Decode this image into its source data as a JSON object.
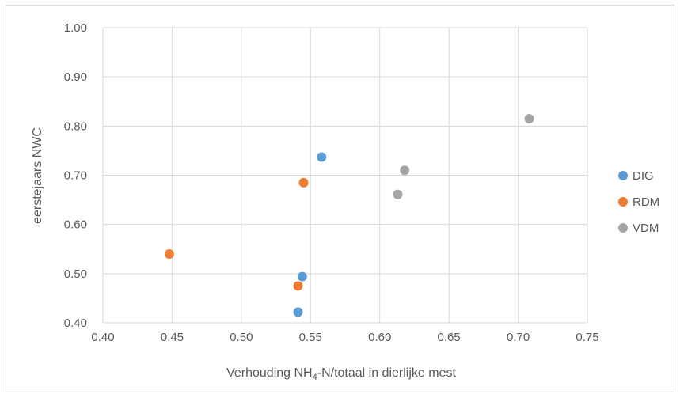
{
  "chart_data": {
    "type": "scatter",
    "title": "",
    "xlabel_parts": {
      "prefix": "Verhouding NH",
      "sub": "4",
      "suffix": "-N/totaal in dierlijke mest"
    },
    "ylabel": "eerstejaars NWC",
    "xlim": [
      0.4,
      0.75
    ],
    "ylim": [
      0.4,
      1.0
    ],
    "x_ticks": [
      0.4,
      0.45,
      0.5,
      0.55,
      0.6,
      0.65,
      0.7,
      0.75
    ],
    "y_ticks": [
      0.4,
      0.5,
      0.6,
      0.7,
      0.8,
      0.9,
      1.0
    ],
    "x_tick_labels": [
      "0.40",
      "0.45",
      "0.50",
      "0.55",
      "0.60",
      "0.65",
      "0.70",
      "0.75"
    ],
    "y_tick_labels": [
      "0.40",
      "0.50",
      "0.60",
      "0.70",
      "0.80",
      "0.90",
      "1.00"
    ],
    "grid": true,
    "legend_position": "right",
    "series": [
      {
        "name": "DIG",
        "color": "#5b9bd5",
        "points": [
          [
            0.558,
            0.737
          ],
          [
            0.544,
            0.494
          ],
          [
            0.541,
            0.422
          ]
        ]
      },
      {
        "name": "RDM",
        "color": "#ed7d31",
        "points": [
          [
            0.545,
            0.685
          ],
          [
            0.448,
            0.54
          ],
          [
            0.541,
            0.475
          ]
        ]
      },
      {
        "name": "VDM",
        "color": "#a5a5a5",
        "points": [
          [
            0.708,
            0.815
          ],
          [
            0.618,
            0.71
          ],
          [
            0.613,
            0.661
          ]
        ]
      }
    ]
  }
}
